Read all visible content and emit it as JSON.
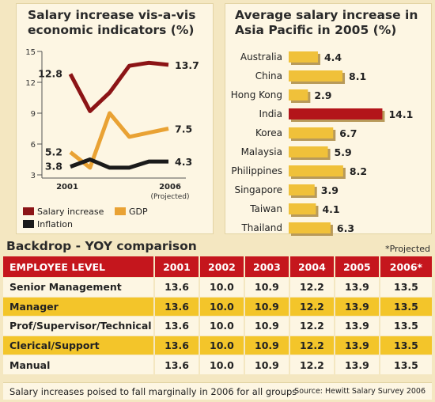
{
  "colors": {
    "salary": "#8c1416",
    "gdp": "#e9a234",
    "inflation": "#1a1a1a",
    "bar_gold": "#f0c13a",
    "bar_india": "#b3151a",
    "header_red": "#c5161d"
  },
  "chart_data": [
    {
      "type": "line",
      "title": "Salary increase vis-a-vis economic indicators (%)",
      "x": [
        2001,
        2002,
        2003,
        2004,
        2005,
        2006
      ],
      "x_tick_labels": [
        "2001",
        "2006"
      ],
      "x_note": "(Projected)",
      "y_ticks": [
        "3",
        "6",
        "9",
        "12",
        "15"
      ],
      "ylim": [
        3,
        15
      ],
      "series": [
        {
          "name": "Salary increase",
          "color": "#8c1416",
          "values": [
            12.8,
            9.2,
            11.0,
            13.6,
            13.9,
            13.7
          ],
          "start_label": "12.8",
          "end_label": "13.7"
        },
        {
          "name": "GDP",
          "color": "#e9a234",
          "values": [
            5.2,
            3.7,
            9.0,
            6.7,
            7.1,
            7.5
          ],
          "start_label": "5.2",
          "end_label": "7.5"
        },
        {
          "name": "Inflation",
          "color": "#1a1a1a",
          "values": [
            3.8,
            4.5,
            3.7,
            3.7,
            4.3,
            4.3
          ],
          "start_label": "3.8",
          "end_label": "4.3"
        }
      ]
    },
    {
      "type": "bar",
      "orientation": "horizontal",
      "title": "Average salary increase in Asia Pacific in 2005 (%)",
      "categories": [
        "Australia",
        "China",
        "Hong Kong",
        "India",
        "Korea",
        "Malaysia",
        "Philippines",
        "Singapore",
        "Taiwan",
        "Thailand"
      ],
      "values": [
        4.4,
        8.1,
        2.9,
        14.1,
        6.7,
        5.9,
        8.2,
        3.9,
        4.1,
        6.3
      ],
      "value_labels": [
        "4.4",
        "8.1",
        "2.9",
        "14.1",
        "6.7",
        "5.9",
        "8.2",
        "3.9",
        "4.1",
        "6.3"
      ],
      "highlight": "India"
    },
    {
      "type": "table",
      "title": "Backdrop - YOY comparison",
      "note": "*Projected",
      "columns": [
        "EMPLOYEE LEVEL",
        "2001",
        "2002",
        "2003",
        "2004",
        "2005",
        "2006*"
      ],
      "rows": [
        [
          "Senior Management",
          "13.6",
          "10.0",
          "10.9",
          "12.2",
          "13.9",
          "13.5"
        ],
        [
          "Manager",
          "13.6",
          "10.0",
          "10.9",
          "12.2",
          "13.9",
          "13.5"
        ],
        [
          "Prof/Supervisor/Technical",
          "13.6",
          "10.0",
          "10.9",
          "12.2",
          "13.9",
          "13.5"
        ],
        [
          "Clerical/Support",
          "13.6",
          "10.0",
          "10.9",
          "12.2",
          "13.9",
          "13.5"
        ],
        [
          "Manual",
          "13.6",
          "10.0",
          "10.9",
          "12.2",
          "13.9",
          "13.5"
        ]
      ]
    }
  ],
  "footer": {
    "caption": "Salary increases poised to fall marginally in 2006 for all groups",
    "source": "Source: Hewitt Salary Survey 2006"
  }
}
